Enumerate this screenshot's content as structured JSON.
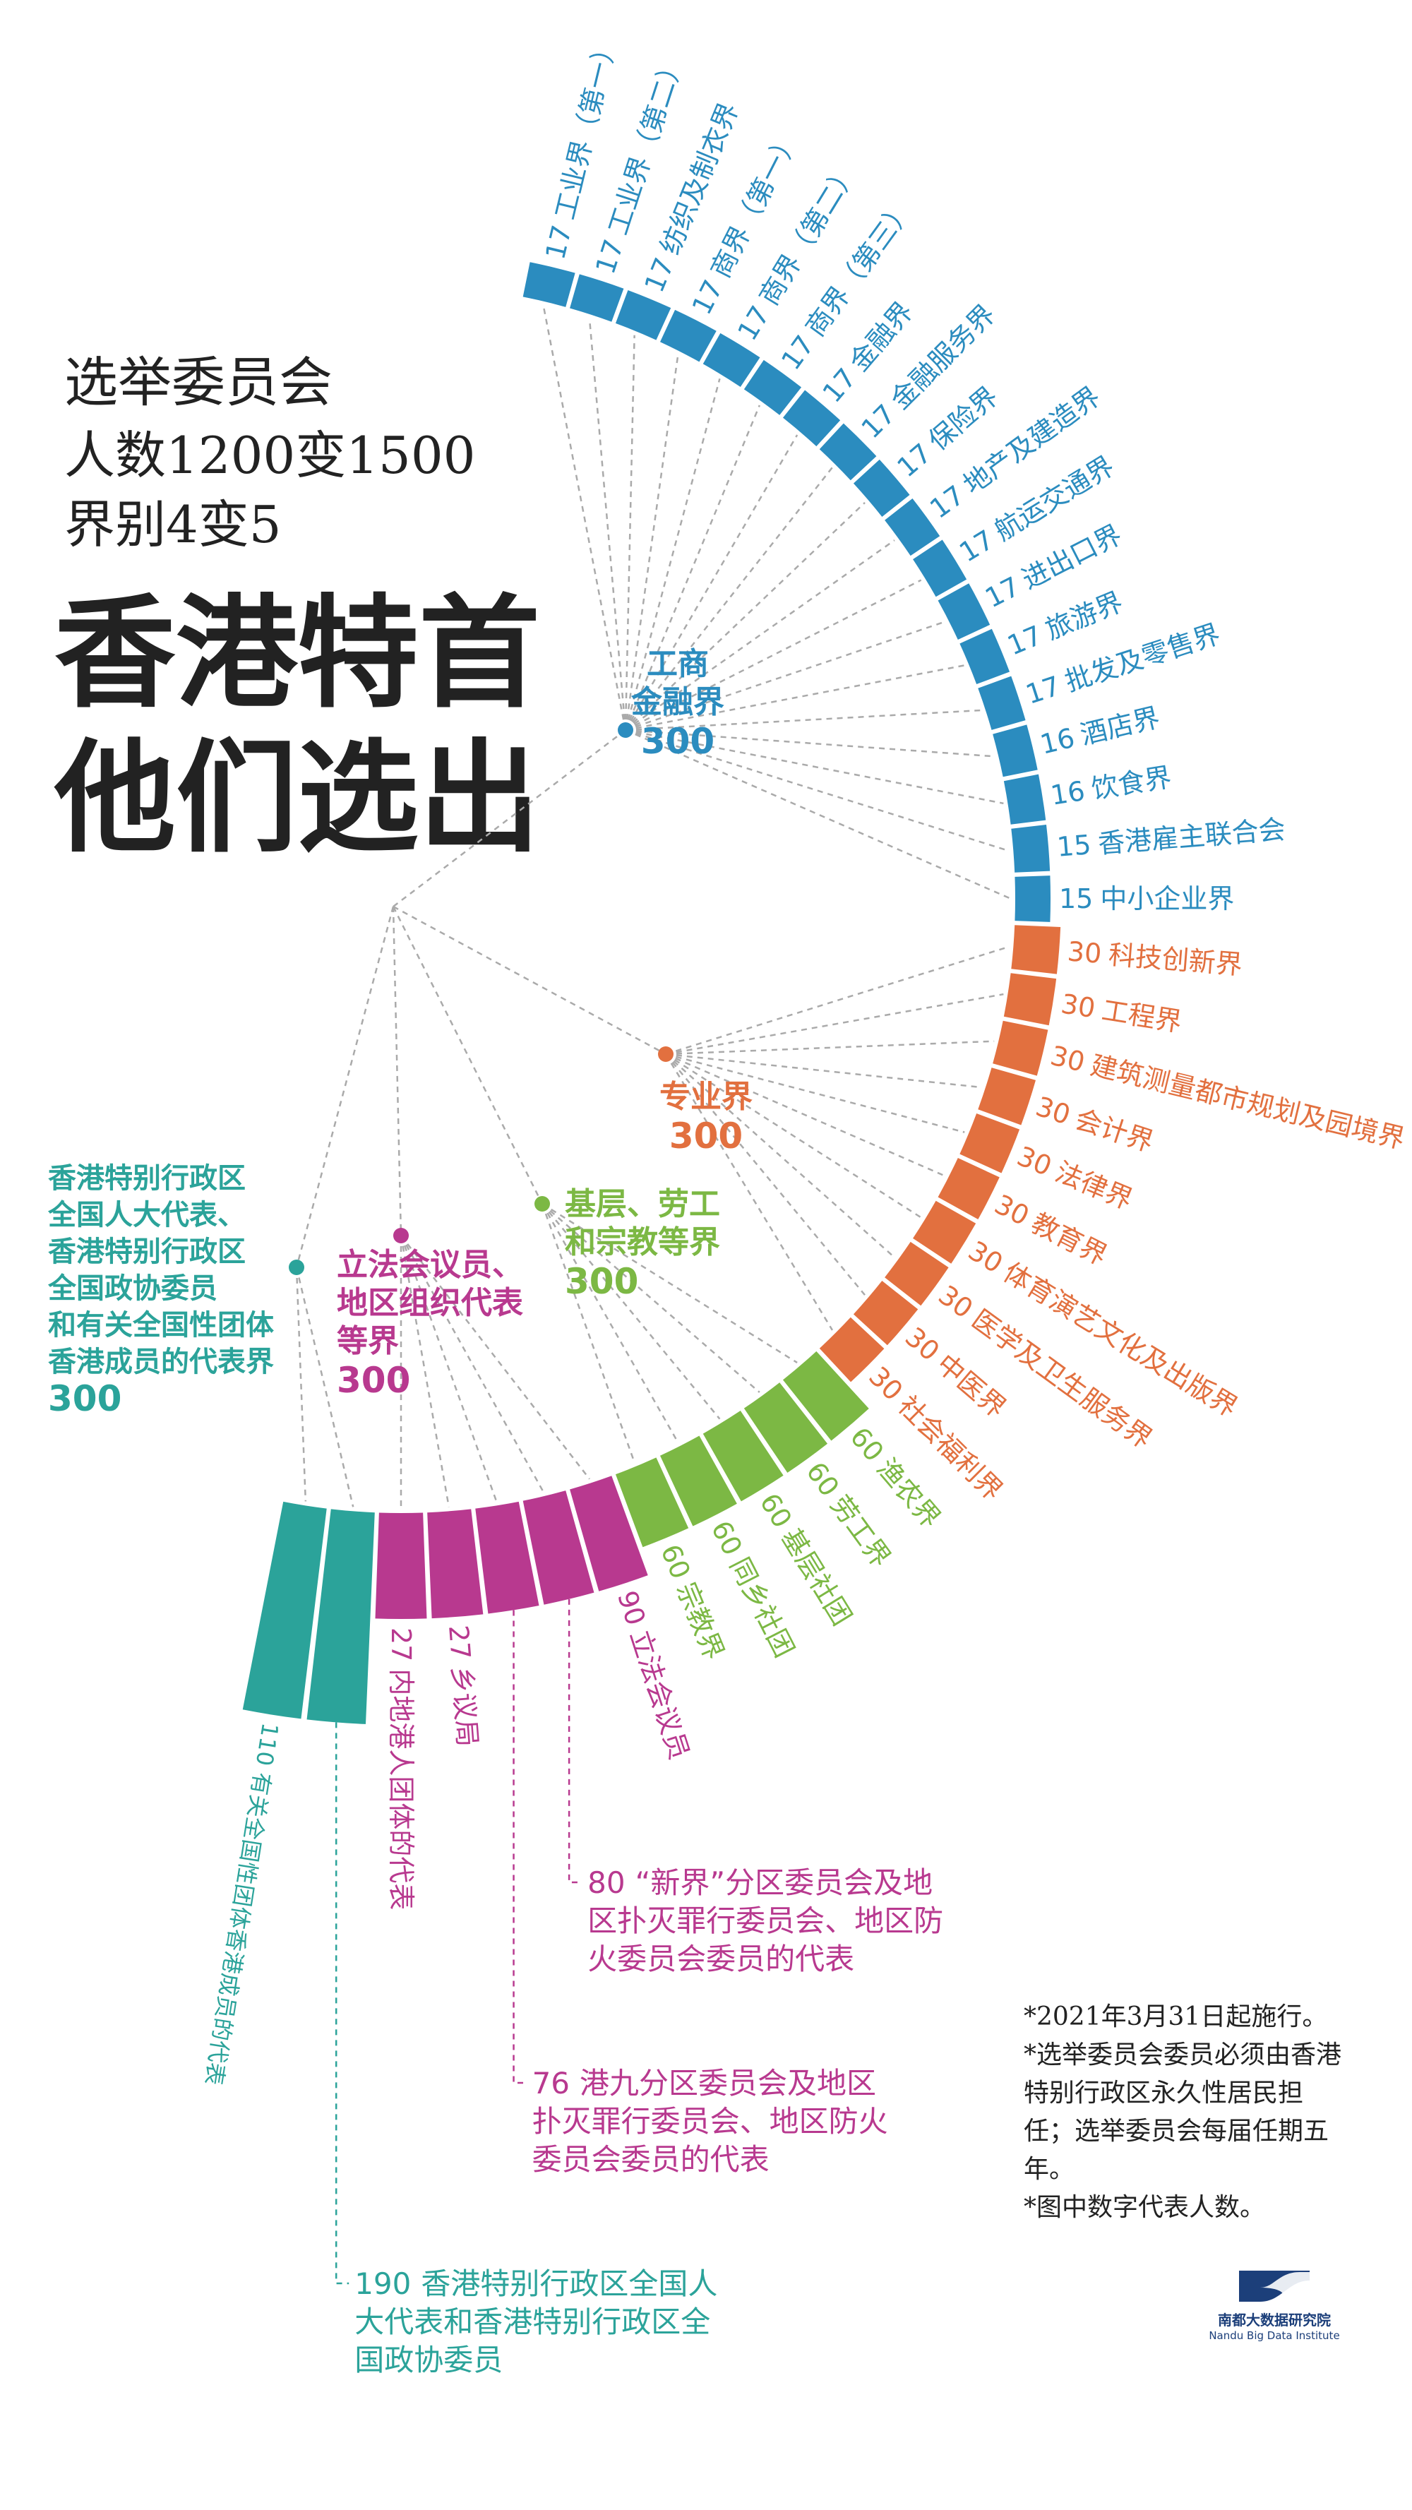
{
  "header": {
    "lines": [
      "选举委员会",
      "人数1200变1500",
      "界别4变5"
    ],
    "title": [
      "香港特首",
      "他们选出"
    ]
  },
  "groups": [
    {
      "name_lines": [
        "工商",
        "金融界"
      ],
      "total": 300,
      "color": "#2b8cbf",
      "sectors": [
        {
          "value": 17,
          "name": "工业界（第一）"
        },
        {
          "value": 17,
          "name": "工业界（第二）"
        },
        {
          "value": 17,
          "name": "纺织及制衣界"
        },
        {
          "value": 17,
          "name": "商界（第一）"
        },
        {
          "value": 17,
          "name": "商界（第二）"
        },
        {
          "value": 17,
          "name": "商界（第三）"
        },
        {
          "value": 17,
          "name": "金融界"
        },
        {
          "value": 17,
          "name": "金融服务界"
        },
        {
          "value": 17,
          "name": "保险界"
        },
        {
          "value": 17,
          "name": "地产及建造界"
        },
        {
          "value": 17,
          "name": "航运交通界"
        },
        {
          "value": 17,
          "name": "进出口界"
        },
        {
          "value": 17,
          "name": "旅游界"
        },
        {
          "value": 17,
          "name": "批发及零售界"
        },
        {
          "value": 16,
          "name": "酒店界"
        },
        {
          "value": 16,
          "name": "饮食界"
        },
        {
          "value": 15,
          "name": "香港雇主联合会"
        },
        {
          "value": 15,
          "name": "中小企业界"
        }
      ]
    },
    {
      "name_lines": [
        "专业界"
      ],
      "total": 300,
      "color": "#e2703f",
      "sectors": [
        {
          "value": 30,
          "name": "科技创新界"
        },
        {
          "value": 30,
          "name": "工程界"
        },
        {
          "value": 30,
          "name": "建筑测量都市规划及园境界"
        },
        {
          "value": 30,
          "name": "会计界"
        },
        {
          "value": 30,
          "name": "法律界"
        },
        {
          "value": 30,
          "name": "教育界"
        },
        {
          "value": 30,
          "name": "体育演艺文化及出版界"
        },
        {
          "value": 30,
          "name": "医学及卫生服务界"
        },
        {
          "value": 30,
          "name": "中医界"
        },
        {
          "value": 30,
          "name": "社会福利界"
        }
      ]
    },
    {
      "name_lines": [
        "基层、劳工",
        "和宗教等界"
      ],
      "total": 300,
      "color": "#7cb844",
      "sectors": [
        {
          "value": 60,
          "name": "渔农界"
        },
        {
          "value": 60,
          "name": "劳工界"
        },
        {
          "value": 60,
          "name": "基层社团"
        },
        {
          "value": 60,
          "name": "同乡社团"
        },
        {
          "value": 60,
          "name": "宗教界"
        }
      ]
    },
    {
      "name_lines": [
        "立法会议员、",
        "地区组织代表",
        "等界"
      ],
      "total": 300,
      "color": "#b8398f",
      "sectors": [
        {
          "value": 90,
          "name": "立法会议员"
        },
        {
          "value": 80,
          "name": "“新界”分区委员会及地区扑灭罪行委员会、地区防火委员会委员的代表"
        },
        {
          "value": 76,
          "name": "港九分区委员会及地区扑灭罪行委员会、地区防火委员会委员的代表"
        },
        {
          "value": 27,
          "name": "乡议局"
        },
        {
          "value": 27,
          "name": "内地港人团体的代表"
        }
      ]
    },
    {
      "name_lines": [
        "香港特别行政区",
        "全国人大代表、",
        "香港特别行政区",
        "全国政协委员",
        "和有关全国性团体",
        "香港成员的代表界"
      ],
      "total": 300,
      "color": "#2ba39a",
      "sectors": [
        {
          "value": 190,
          "name": "香港特别行政区全国人大代表和香港特别行政区全国政协委员"
        },
        {
          "value": 110,
          "name": "有关全国性团体香港成员的代表"
        }
      ]
    }
  ],
  "notes": [
    "*2021年3月31日起施行。",
    "*选举委员会委员必须由香港特别行政区永久性居民担任；选举委员会每届任期五年。",
    "*图中数字代表人数。"
  ],
  "logo": {
    "name": "南都大数据研究院",
    "english": "Nandu Big Data Institute"
  }
}
